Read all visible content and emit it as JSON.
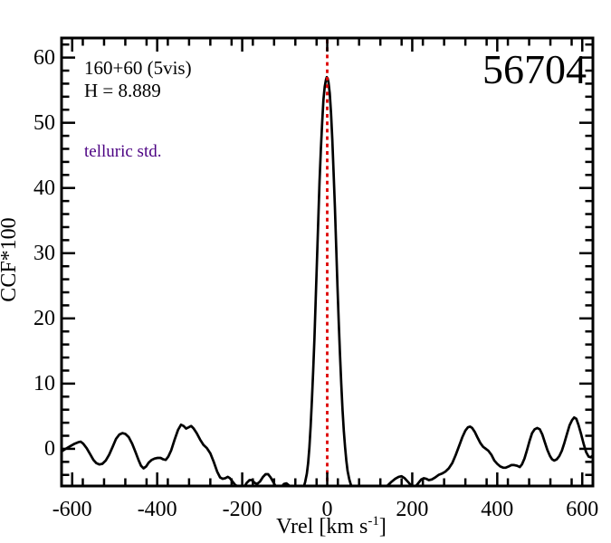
{
  "chart_data": {
    "type": "line",
    "title": "",
    "ylabel": "CCF*100",
    "xlabel": "Vrel [km s-1]",
    "xlabel_parts": {
      "prefix": "Vrel [km s",
      "sup": "-1",
      "suffix": "]"
    },
    "xlim": [
      -625,
      625
    ],
    "ylim": [
      -5.7,
      63
    ],
    "grid": false,
    "legend": null,
    "x_major_ticks": [
      -600,
      -400,
      -200,
      0,
      200,
      400,
      600
    ],
    "x_tick_labels": [
      "-600",
      "-400",
      "-200",
      "0",
      "200",
      "400",
      "600"
    ],
    "x_major_step": 200,
    "x_minor_step": 50,
    "y_major_ticks": [
      0,
      10,
      20,
      30,
      40,
      50,
      60
    ],
    "y_tick_labels": [
      "0",
      "10",
      "20",
      "30",
      "40",
      "50",
      "60"
    ],
    "y_major_step": 10,
    "y_minor_step": 2,
    "ref_line": {
      "x": 0,
      "style": "dotted",
      "color": "#dd0000"
    },
    "annotations": {
      "field": {
        "text": "160+60 (5vis)",
        "color": "#000000"
      },
      "h_magnitude": {
        "text": "H = 8.889",
        "color": "#000000"
      },
      "telluric": {
        "text": "telluric std.",
        "color": "#4b0082"
      },
      "mjd": {
        "text": "56704",
        "color": "#000000"
      }
    },
    "series": [
      {
        "name": "CCF",
        "color": "#000000",
        "points": [
          [
            -625,
            -0.4
          ],
          [
            -618,
            -0.1
          ],
          [
            -610,
            0.2
          ],
          [
            -602,
            0.5
          ],
          [
            -594,
            0.8
          ],
          [
            -586,
            1.0
          ],
          [
            -580,
            1.1
          ],
          [
            -574,
            0.8
          ],
          [
            -566,
            0.1
          ],
          [
            -558,
            -0.8
          ],
          [
            -550,
            -1.7
          ],
          [
            -543,
            -2.2
          ],
          [
            -536,
            -2.4
          ],
          [
            -529,
            -2.3
          ],
          [
            -521,
            -1.8
          ],
          [
            -513,
            -0.9
          ],
          [
            -505,
            0.3
          ],
          [
            -497,
            1.5
          ],
          [
            -489,
            2.2
          ],
          [
            -482,
            2.4
          ],
          [
            -475,
            2.3
          ],
          [
            -467,
            1.8
          ],
          [
            -459,
            0.8
          ],
          [
            -451,
            -0.5
          ],
          [
            -444,
            -1.7
          ],
          [
            -438,
            -2.6
          ],
          [
            -432,
            -3.0
          ],
          [
            -426,
            -2.7
          ],
          [
            -420,
            -2.1
          ],
          [
            -413,
            -1.7
          ],
          [
            -406,
            -1.5
          ],
          [
            -399,
            -1.4
          ],
          [
            -392,
            -1.4
          ],
          [
            -386,
            -1.6
          ],
          [
            -380,
            -1.7
          ],
          [
            -374,
            -1.2
          ],
          [
            -367,
            -0.2
          ],
          [
            -359,
            1.4
          ],
          [
            -351,
            2.9
          ],
          [
            -344,
            3.7
          ],
          [
            -338,
            3.5
          ],
          [
            -332,
            3.1
          ],
          [
            -326,
            3.3
          ],
          [
            -320,
            3.5
          ],
          [
            -314,
            3.1
          ],
          [
            -307,
            2.4
          ],
          [
            -299,
            1.4
          ],
          [
            -291,
            0.6
          ],
          [
            -283,
            0.1
          ],
          [
            -275,
            -0.7
          ],
          [
            -267,
            -2.0
          ],
          [
            -259,
            -3.5
          ],
          [
            -252,
            -4.4
          ],
          [
            -246,
            -4.6
          ],
          [
            -240,
            -4.5
          ],
          [
            -234,
            -4.3
          ],
          [
            -229,
            -4.5
          ],
          [
            -223,
            -5.0
          ],
          [
            -217,
            -5.5
          ],
          [
            -210,
            -5.8
          ],
          [
            -202,
            -6.0
          ],
          [
            -195,
            -5.8
          ],
          [
            -189,
            -5.2
          ],
          [
            -183,
            -4.8
          ],
          [
            -177,
            -4.8
          ],
          [
            -171,
            -5.2
          ],
          [
            -165,
            -5.4
          ],
          [
            -158,
            -5.0
          ],
          [
            -151,
            -4.3
          ],
          [
            -145,
            -3.9
          ],
          [
            -139,
            -3.9
          ],
          [
            -133,
            -4.4
          ],
          [
            -127,
            -5.1
          ],
          [
            -121,
            -5.8
          ],
          [
            -115,
            -6.2
          ],
          [
            -108,
            -5.9
          ],
          [
            -102,
            -5.4
          ],
          [
            -96,
            -5.3
          ],
          [
            -90,
            -5.6
          ],
          [
            -84,
            -6.1
          ],
          [
            -78,
            -6.5
          ],
          [
            -70,
            -6.8
          ],
          [
            -62,
            -6.6
          ],
          [
            -56,
            -6.0
          ],
          [
            -52,
            -5.1
          ],
          [
            -48,
            -3.8
          ],
          [
            -45,
            -2.2
          ],
          [
            -42,
            0.2
          ],
          [
            -39,
            3.5
          ],
          [
            -36,
            7.5
          ],
          [
            -33,
            12
          ],
          [
            -30,
            17
          ],
          [
            -27,
            23
          ],
          [
            -24,
            29
          ],
          [
            -21,
            35
          ],
          [
            -18,
            41
          ],
          [
            -15,
            46
          ],
          [
            -12,
            50
          ],
          [
            -9,
            53.5
          ],
          [
            -6,
            55.5
          ],
          [
            -3,
            56.6
          ],
          [
            -1,
            57
          ],
          [
            1,
            56.8
          ],
          [
            3,
            56.2
          ],
          [
            6,
            54.5
          ],
          [
            9,
            51.5
          ],
          [
            12,
            47.5
          ],
          [
            15,
            42.5
          ],
          [
            18,
            37
          ],
          [
            21,
            31
          ],
          [
            24,
            25
          ],
          [
            27,
            19.5
          ],
          [
            30,
            14.5
          ],
          [
            33,
            10
          ],
          [
            36,
            6
          ],
          [
            39,
            2.8
          ],
          [
            42,
            0.3
          ],
          [
            45,
            -1.8
          ],
          [
            48,
            -3.4
          ],
          [
            52,
            -4.7
          ],
          [
            56,
            -5.6
          ],
          [
            61,
            -6.2
          ],
          [
            68,
            -6.7
          ],
          [
            80,
            -7.1
          ],
          [
            100,
            -7.2
          ],
          [
            118,
            -6.9
          ],
          [
            128,
            -6.4
          ],
          [
            136,
            -6.0
          ],
          [
            144,
            -5.5
          ],
          [
            152,
            -5.0
          ],
          [
            160,
            -4.6
          ],
          [
            168,
            -4.3
          ],
          [
            175,
            -4.2
          ],
          [
            182,
            -4.5
          ],
          [
            189,
            -5.0
          ],
          [
            196,
            -5.5
          ],
          [
            203,
            -5.8
          ],
          [
            209,
            -5.7
          ],
          [
            215,
            -5.2
          ],
          [
            221,
            -4.7
          ],
          [
            227,
            -4.5
          ],
          [
            233,
            -4.6
          ],
          [
            239,
            -4.8
          ],
          [
            246,
            -4.7
          ],
          [
            254,
            -4.4
          ],
          [
            262,
            -4.0
          ],
          [
            270,
            -3.8
          ],
          [
            278,
            -3.5
          ],
          [
            286,
            -3.0
          ],
          [
            294,
            -2.2
          ],
          [
            302,
            -1.0
          ],
          [
            310,
            0.4
          ],
          [
            318,
            1.8
          ],
          [
            325,
            2.8
          ],
          [
            331,
            3.3
          ],
          [
            336,
            3.4
          ],
          [
            341,
            3.2
          ],
          [
            347,
            2.6
          ],
          [
            353,
            1.8
          ],
          [
            360,
            0.9
          ],
          [
            367,
            0.3
          ],
          [
            373,
            0.0
          ],
          [
            379,
            -0.3
          ],
          [
            386,
            -0.9
          ],
          [
            393,
            -1.8
          ],
          [
            400,
            -2.3
          ],
          [
            407,
            -2.7
          ],
          [
            414,
            -2.9
          ],
          [
            420,
            -2.9
          ],
          [
            427,
            -2.7
          ],
          [
            433,
            -2.5
          ],
          [
            440,
            -2.5
          ],
          [
            447,
            -2.6
          ],
          [
            453,
            -2.8
          ],
          [
            458,
            -2.4
          ],
          [
            464,
            -1.5
          ],
          [
            470,
            -0.2
          ],
          [
            476,
            1.2
          ],
          [
            482,
            2.4
          ],
          [
            488,
            3.0
          ],
          [
            494,
            3.2
          ],
          [
            500,
            3.0
          ],
          [
            506,
            2.2
          ],
          [
            512,
            1.0
          ],
          [
            518,
            -0.2
          ],
          [
            524,
            -1.1
          ],
          [
            529,
            -1.6
          ],
          [
            534,
            -1.8
          ],
          [
            540,
            -1.6
          ],
          [
            546,
            -1.1
          ],
          [
            552,
            -0.3
          ],
          [
            558,
            0.9
          ],
          [
            564,
            2.3
          ],
          [
            570,
            3.6
          ],
          [
            576,
            4.4
          ],
          [
            581,
            4.8
          ],
          [
            586,
            4.6
          ],
          [
            591,
            3.7
          ],
          [
            597,
            2.3
          ],
          [
            603,
            0.8
          ],
          [
            609,
            -0.5
          ],
          [
            615,
            -1.2
          ],
          [
            620,
            -1.3
          ],
          [
            623,
            -1.1
          ],
          [
            625,
            -1.0
          ]
        ]
      }
    ],
    "colors": {
      "frame": "#000000",
      "background": "#ffffff",
      "curve": "#000000",
      "ref_line": "#dd0000",
      "telluric_text": "#4b0082"
    }
  }
}
